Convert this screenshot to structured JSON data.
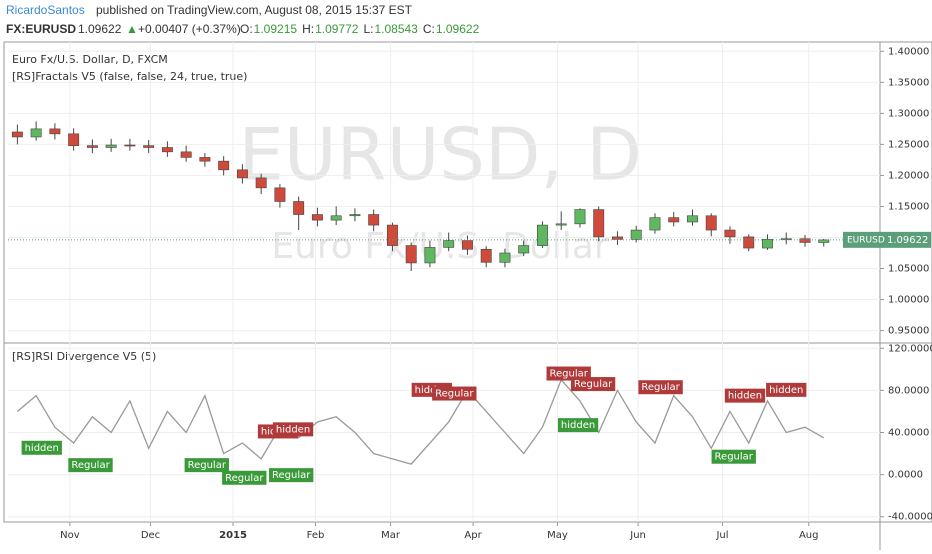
{
  "header": {
    "author": "RicardoSantos",
    "published": "published on TradingView.com, August 08, 2015 15:37 EST",
    "symbol": "FX:EURUSD",
    "price": "1.09622",
    "arrow": "▲",
    "change": "+0.00407 (+0.37%)",
    "ohlc": [
      {
        "key": "O:",
        "value": "1.09215"
      },
      {
        "key": "H:",
        "value": "1.09772"
      },
      {
        "key": "L:",
        "value": "1.08543"
      },
      {
        "key": "C:",
        "value": "1.09622"
      }
    ]
  },
  "chart_data": [
    {
      "type": "candlestick",
      "title": "Euro Fx/U.S. Dollar, D, FXCM",
      "subtitle": "[RS]Fractals V5 (false, false, 24, true, true)",
      "watermark": "EURUSD, D",
      "watermark_sub": "Euro Fx/U.S. Dollar",
      "up_color": "#5fb760",
      "down_color": "#d04a3c",
      "x": [
        1,
        2,
        3,
        4,
        5,
        6,
        7,
        8,
        9,
        10,
        11,
        12,
        13,
        14,
        15,
        16,
        17,
        18,
        19,
        20,
        21,
        22,
        23,
        24,
        25,
        26,
        27,
        28,
        29,
        30,
        31,
        32,
        33,
        34,
        35,
        36,
        37,
        38,
        39,
        40,
        41,
        42,
        43,
        44
      ],
      "open": [
        1.27,
        1.262,
        1.275,
        1.267,
        1.248,
        1.245,
        1.249,
        1.248,
        1.245,
        1.238,
        1.229,
        1.223,
        1.209,
        1.196,
        1.18,
        1.158,
        1.137,
        1.128,
        1.135,
        1.137,
        1.12,
        1.087,
        1.059,
        1.084,
        1.095,
        1.081,
        1.06,
        1.075,
        1.087,
        1.12,
        1.122,
        1.145,
        1.101,
        1.097,
        1.112,
        1.132,
        1.125,
        1.135,
        1.112,
        1.101,
        1.083,
        1.097,
        1.098,
        1.092
      ],
      "high": [
        1.282,
        1.287,
        1.284,
        1.276,
        1.258,
        1.259,
        1.259,
        1.257,
        1.255,
        1.248,
        1.236,
        1.231,
        1.218,
        1.203,
        1.186,
        1.166,
        1.148,
        1.15,
        1.147,
        1.145,
        1.124,
        1.092,
        1.095,
        1.108,
        1.103,
        1.086,
        1.082,
        1.095,
        1.126,
        1.142,
        1.147,
        1.15,
        1.11,
        1.119,
        1.139,
        1.141,
        1.145,
        1.139,
        1.118,
        1.105,
        1.105,
        1.108,
        1.104,
        1.0977
      ],
      "low": [
        1.25,
        1.256,
        1.258,
        1.24,
        1.236,
        1.238,
        1.24,
        1.236,
        1.23,
        1.222,
        1.214,
        1.2,
        1.187,
        1.17,
        1.148,
        1.112,
        1.118,
        1.12,
        1.126,
        1.11,
        1.078,
        1.046,
        1.052,
        1.078,
        1.072,
        1.052,
        1.052,
        1.07,
        1.083,
        1.112,
        1.116,
        1.094,
        1.088,
        1.092,
        1.106,
        1.118,
        1.119,
        1.102,
        1.09,
        1.078,
        1.08,
        1.089,
        1.085,
        1.0854
      ],
      "close": [
        1.262,
        1.275,
        1.267,
        1.248,
        1.245,
        1.249,
        1.248,
        1.245,
        1.238,
        1.229,
        1.223,
        1.209,
        1.196,
        1.18,
        1.158,
        1.137,
        1.128,
        1.135,
        1.137,
        1.12,
        1.087,
        1.059,
        1.084,
        1.095,
        1.081,
        1.06,
        1.075,
        1.087,
        1.12,
        1.122,
        1.145,
        1.101,
        1.097,
        1.112,
        1.132,
        1.125,
        1.135,
        1.112,
        1.101,
        1.083,
        1.097,
        1.098,
        1.092,
        1.09622
      ],
      "last_price": {
        "label": "EURUSD",
        "value": 1.09622
      },
      "xlim": [
        0.5,
        47
      ],
      "ylim": [
        0.93,
        1.415
      ],
      "yticks": [
        {
          "value": 1.4,
          "label": "1.40000"
        },
        {
          "value": 1.35,
          "label": "1.35000"
        },
        {
          "value": 1.3,
          "label": "1.30000"
        },
        {
          "value": 1.25,
          "label": "1.25000"
        },
        {
          "value": 1.2,
          "label": "1.20000"
        },
        {
          "value": 1.15,
          "label": "1.15000"
        },
        {
          "value": 1.1,
          "label": "1.10000"
        },
        {
          "value": 1.05,
          "label": "1.05000"
        },
        {
          "value": 1.0,
          "label": "1.00000"
        },
        {
          "value": 0.95,
          "label": "0.95000"
        }
      ]
    },
    {
      "type": "line",
      "title": "[RS]RSI Divergence V5 (5)",
      "color": "#999999",
      "x": [
        1,
        2,
        3,
        4,
        5,
        6,
        7,
        8,
        9,
        10,
        11,
        12,
        13,
        14,
        15,
        16,
        17,
        18,
        19,
        20,
        21,
        22,
        23,
        24,
        25,
        26,
        27,
        28,
        29,
        30,
        31,
        32,
        33,
        34,
        35,
        36,
        37,
        38,
        39,
        40,
        41,
        42,
        43,
        44
      ],
      "values": [
        60,
        75,
        45,
        30,
        55,
        40,
        70,
        25,
        60,
        40,
        75,
        20,
        30,
        15,
        45,
        35,
        50,
        55,
        40,
        20,
        15,
        10,
        30,
        50,
        80,
        60,
        40,
        20,
        45,
        90,
        70,
        40,
        80,
        50,
        30,
        75,
        55,
        25,
        60,
        30,
        70,
        40,
        45,
        35
      ],
      "annotations": [
        {
          "x": 2.3,
          "y": 25.5,
          "label": "hidden",
          "color": "#3a9a3a"
        },
        {
          "x": 4.9,
          "y": 9,
          "label": "Regular",
          "color": "#3a9a3a"
        },
        {
          "x": 11.1,
          "y": 9,
          "label": "Regular",
          "color": "#3a9a3a"
        },
        {
          "x": 13.1,
          "y": -3,
          "label": "Regular",
          "color": "#3a9a3a"
        },
        {
          "x": 14.9,
          "y": 41,
          "label": "hidden",
          "color": "#b03a3a"
        },
        {
          "x": 15.7,
          "y": 43,
          "label": "hidden",
          "color": "#b03a3a"
        },
        {
          "x": 15.6,
          "y": -0.5,
          "label": "Regular",
          "color": "#3a9a3a"
        },
        {
          "x": 23.1,
          "y": 80.5,
          "label": "hidden",
          "color": "#b03a3a"
        },
        {
          "x": 24.3,
          "y": 77,
          "label": "Regular",
          "color": "#b03a3a"
        },
        {
          "x": 30.4,
          "y": 96,
          "label": "Regular",
          "color": "#b03a3a"
        },
        {
          "x": 31.7,
          "y": 86,
          "label": "Regular",
          "color": "#b03a3a"
        },
        {
          "x": 30.9,
          "y": 47,
          "label": "hidden",
          "color": "#3a9a3a"
        },
        {
          "x": 35.3,
          "y": 83,
          "label": "Regular",
          "color": "#b03a3a"
        },
        {
          "x": 39.8,
          "y": 75,
          "label": "hidden",
          "color": "#b03a3a"
        },
        {
          "x": 39.2,
          "y": 17,
          "label": "Regular",
          "color": "#3a9a3a"
        },
        {
          "x": 42,
          "y": 80.5,
          "label": "hidden",
          "color": "#b03a3a"
        }
      ],
      "xlim": [
        0.5,
        47
      ],
      "ylim": [
        -45,
        125
      ],
      "xticks": [
        {
          "value": 3.8,
          "label": "Nov"
        },
        {
          "value": 8.1,
          "label": "Dec"
        },
        {
          "value": 12.5,
          "label": "2015"
        },
        {
          "value": 16.9,
          "label": "Feb"
        },
        {
          "value": 20.9,
          "label": "Mar"
        },
        {
          "value": 25.3,
          "label": "Apr"
        },
        {
          "value": 29.8,
          "label": "May"
        },
        {
          "value": 34.1,
          "label": "Jun"
        },
        {
          "value": 38.6,
          "label": "Jul"
        },
        {
          "value": 43.2,
          "label": "Aug"
        }
      ],
      "yticks": [
        {
          "value": 120,
          "label": "120.0000"
        },
        {
          "value": 80,
          "label": "80.0000"
        },
        {
          "value": 40,
          "label": "40.0000"
        },
        {
          "value": 0,
          "label": "0.0000"
        },
        {
          "value": -40,
          "label": "-40.0000"
        }
      ]
    }
  ]
}
